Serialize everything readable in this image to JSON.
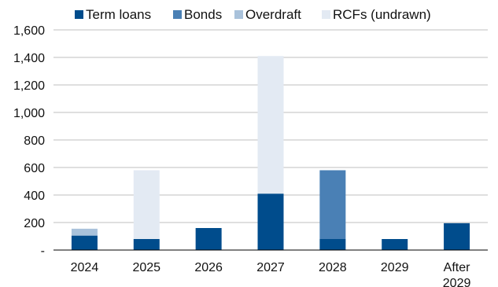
{
  "chart_data": {
    "type": "bar",
    "stacked": true,
    "categories": [
      "2024",
      "2025",
      "2026",
      "2027",
      "2028",
      "2029",
      "After 2029"
    ],
    "series": [
      {
        "name": "Term loans",
        "color": "#004C8C",
        "values": [
          105,
          80,
          160,
          410,
          80,
          80,
          195
        ]
      },
      {
        "name": "Bonds",
        "color": "#4A80B5",
        "values": [
          0,
          0,
          0,
          0,
          500,
          0,
          0
        ]
      },
      {
        "name": "Overdraft",
        "color": "#A9C2DB",
        "values": [
          50,
          0,
          0,
          0,
          0,
          0,
          0
        ]
      },
      {
        "name": "RCFs (undrawn)",
        "color": "#E3EAF3",
        "values": [
          0,
          500,
          0,
          1000,
          0,
          0,
          0
        ]
      }
    ],
    "y_ticks": [
      {
        "value": 0,
        "label": "-"
      },
      {
        "value": 200,
        "label": "200"
      },
      {
        "value": 400,
        "label": "400"
      },
      {
        "value": 600,
        "label": "600"
      },
      {
        "value": 800,
        "label": "800"
      },
      {
        "value": 1000,
        "label": "1,000"
      },
      {
        "value": 1200,
        "label": "1,200"
      },
      {
        "value": 1400,
        "label": "1,400"
      },
      {
        "value": 1600,
        "label": "1,600"
      }
    ],
    "ylim": [
      0,
      1600
    ],
    "grid": true,
    "legend_position": "top",
    "title": "",
    "xlabel": "",
    "ylabel": ""
  }
}
